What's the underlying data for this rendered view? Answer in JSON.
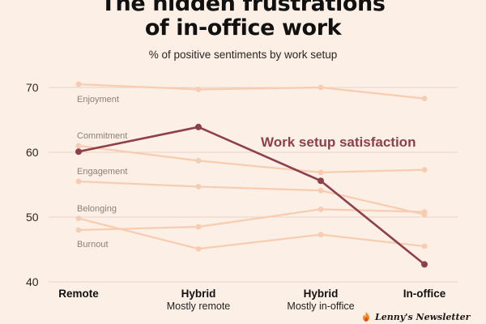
{
  "title": "The hidden frustrations\nof in-office work",
  "subtitle": "% of positive sentiments by work setup",
  "brand": "Lenny's Newsletter",
  "colors": {
    "background": "#fcefe6",
    "grid": "#e7d3c5",
    "faint_series": "#f7ccb0",
    "faint_label": "#8b7f78",
    "highlight": "#8e3f4a"
  },
  "chart_data": {
    "type": "line",
    "categories": [
      {
        "label": "Remote",
        "sublabel": ""
      },
      {
        "label": "Hybrid",
        "sublabel": "Mostly remote"
      },
      {
        "label": "Hybrid",
        "sublabel": "Mostly in-office"
      },
      {
        "label": "In-office",
        "sublabel": ""
      }
    ],
    "ylim": [
      40,
      72
    ],
    "yticks": [
      40,
      50,
      60,
      70
    ],
    "grid": true,
    "series": [
      {
        "name": "Enjoyment",
        "values": [
          70.5,
          69.7,
          70.0,
          68.3
        ],
        "emphasis": false
      },
      {
        "name": "Commitment",
        "values": [
          61.0,
          58.7,
          56.9,
          57.3
        ],
        "emphasis": false
      },
      {
        "name": "Engagement",
        "values": [
          55.5,
          54.7,
          54.1,
          50.4
        ],
        "emphasis": false
      },
      {
        "name": "Belonging",
        "values": [
          48.0,
          48.5,
          51.2,
          50.8
        ],
        "emphasis": false
      },
      {
        "name": "Burnout",
        "values": [
          49.8,
          45.1,
          47.3,
          45.5
        ],
        "emphasis": false
      },
      {
        "name": "Work setup satisfaction",
        "values": [
          60.1,
          63.9,
          55.6,
          42.7
        ],
        "emphasis": true
      }
    ]
  }
}
